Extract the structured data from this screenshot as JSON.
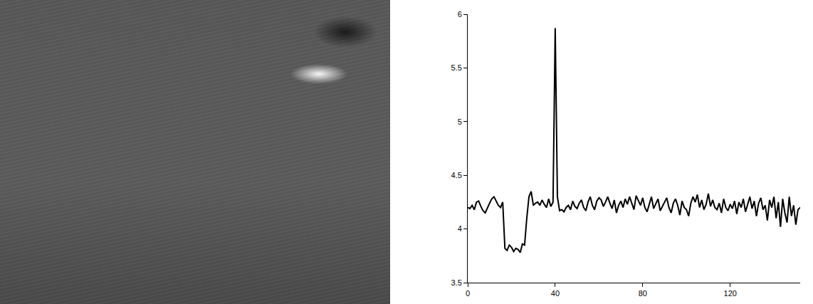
{
  "chart_data": {
    "type": "line",
    "x": [
      0,
      1,
      2,
      3,
      4,
      5,
      6,
      7,
      8,
      9,
      10,
      11,
      12,
      13,
      14,
      15,
      16,
      17,
      18,
      19,
      20,
      21,
      22,
      23,
      24,
      25,
      26,
      27,
      28,
      29,
      30,
      31,
      32,
      33,
      34,
      35,
      36,
      37,
      38,
      39,
      40,
      41,
      42,
      43,
      44,
      45,
      46,
      47,
      48,
      49,
      50,
      51,
      52,
      53,
      54,
      55,
      56,
      57,
      58,
      59,
      60,
      61,
      62,
      63,
      64,
      65,
      66,
      67,
      68,
      69,
      70,
      71,
      72,
      73,
      74,
      75,
      76,
      77,
      78,
      79,
      80,
      81,
      82,
      83,
      84,
      85,
      86,
      87,
      88,
      89,
      90,
      91,
      92,
      93,
      94,
      95,
      96,
      97,
      98,
      99,
      100,
      101,
      102,
      103,
      104,
      105,
      106,
      107,
      108,
      109,
      110,
      111,
      112,
      113,
      114,
      115,
      116,
      117,
      118,
      119,
      120,
      121,
      122,
      123,
      124,
      125,
      126,
      127,
      128,
      129,
      130,
      131,
      132,
      133,
      134,
      135,
      136,
      137,
      138,
      139,
      140,
      141,
      142,
      143,
      144,
      145,
      146,
      147,
      148,
      149,
      150,
      151,
      152
    ],
    "values": [
      4.2,
      4.19,
      4.22,
      4.18,
      4.25,
      4.26,
      4.21,
      4.17,
      4.15,
      4.2,
      4.24,
      4.28,
      4.3,
      4.26,
      4.22,
      4.2,
      4.25,
      3.82,
      3.8,
      3.85,
      3.83,
      3.79,
      3.82,
      3.81,
      3.78,
      3.86,
      3.85,
      4.1,
      4.3,
      4.35,
      4.22,
      4.24,
      4.25,
      4.22,
      4.27,
      4.23,
      4.2,
      4.28,
      4.21,
      4.25,
      5.87,
      4.3,
      4.17,
      4.18,
      4.16,
      4.2,
      4.22,
      4.18,
      4.26,
      4.21,
      4.19,
      4.24,
      4.27,
      4.2,
      4.17,
      4.25,
      4.3,
      4.22,
      4.18,
      4.26,
      4.29,
      4.27,
      4.21,
      4.25,
      4.3,
      4.24,
      4.19,
      4.27,
      4.15,
      4.22,
      4.26,
      4.2,
      4.28,
      4.23,
      4.3,
      4.24,
      4.18,
      4.31,
      4.27,
      4.22,
      4.29,
      4.2,
      4.16,
      4.24,
      4.3,
      4.19,
      4.23,
      4.28,
      4.17,
      4.21,
      4.26,
      4.29,
      4.2,
      4.15,
      4.24,
      4.28,
      4.22,
      4.13,
      4.26,
      4.2,
      4.18,
      4.12,
      4.24,
      4.3,
      4.25,
      4.32,
      4.2,
      4.27,
      4.18,
      4.23,
      4.33,
      4.21,
      4.27,
      4.2,
      4.18,
      4.24,
      4.15,
      4.28,
      4.2,
      4.17,
      4.23,
      4.19,
      4.26,
      4.14,
      4.25,
      4.2,
      4.28,
      4.16,
      4.23,
      4.3,
      4.19,
      4.26,
      4.12,
      4.24,
      4.29,
      4.18,
      4.22,
      4.08,
      4.27,
      4.2,
      4.3,
      4.1,
      4.25,
      4.02,
      4.28,
      4.15,
      4.06,
      4.3,
      4.12,
      4.22,
      4.04,
      4.18,
      4.2
    ],
    "color": "#000000",
    "xlim": [
      0,
      152
    ],
    "xticks": [
      0,
      40,
      80,
      120
    ],
    "ylim": [
      3.5,
      6
    ],
    "yticks": [
      3.5,
      4,
      4.5,
      5,
      5.5,
      6
    ],
    "grid": false
  }
}
